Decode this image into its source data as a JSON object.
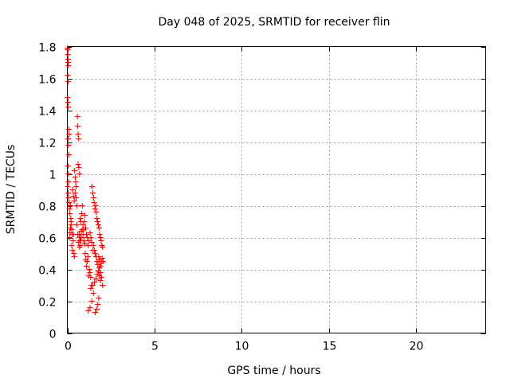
{
  "chart_data": {
    "type": "scatter",
    "title": "Day 048 of 2025, SRMTID for receiver flin",
    "xlabel": "GPS time / hours",
    "ylabel": "SRMTID / TECUs",
    "xlim": [
      0,
      24
    ],
    "ylim": [
      0,
      1.8
    ],
    "xticks": [
      0,
      5,
      10,
      15,
      20
    ],
    "yticks": [
      0,
      0.2,
      0.4,
      0.6,
      0.8,
      1,
      1.2,
      1.4,
      1.6,
      1.8
    ],
    "xtick_labels": [
      "0",
      "5",
      "10",
      "15",
      "20"
    ],
    "ytick_labels": [
      "0",
      "0.2",
      "0.4",
      "0.6",
      "0.8",
      "1",
      "1.2",
      "1.4",
      "1.6",
      "1.8"
    ],
    "grid": true,
    "marker": "+",
    "color": "#ff0000",
    "series": [
      {
        "name": "SRMTID",
        "x": [
          0.01,
          0.02,
          0.03,
          0.04,
          0.05,
          0.06,
          0.03,
          0.05,
          0.02,
          0.04,
          0.06,
          0.08,
          0.1,
          0.05,
          0.07,
          0.09,
          0.04,
          0.06,
          0.08,
          0.03,
          0.05,
          0.07,
          0.1,
          0.12,
          0.15,
          0.18,
          0.2,
          0.22,
          0.25,
          0.28,
          0.12,
          0.15,
          0.18,
          0.22,
          0.25,
          0.3,
          0.33,
          0.35,
          0.38,
          0.4,
          0.42,
          0.45,
          0.48,
          0.5,
          0.3,
          0.35,
          0.4,
          0.45,
          0.5,
          0.55,
          0.58,
          0.6,
          0.62,
          0.65,
          0.68,
          0.7,
          0.72,
          0.75,
          0.78,
          0.8,
          0.55,
          0.6,
          0.65,
          0.7,
          0.75,
          0.8,
          0.85,
          0.9,
          0.95,
          1.0,
          0.62,
          0.66,
          0.7,
          0.74,
          0.78,
          0.82,
          0.86,
          0.9,
          0.94,
          0.98,
          1.0,
          1.05,
          1.1,
          1.15,
          1.2,
          1.25,
          1.3,
          1.35,
          1.4,
          1.45,
          1.02,
          1.06,
          1.1,
          1.14,
          1.18,
          1.22,
          1.26,
          1.3,
          1.34,
          1.38,
          1.5,
          1.55,
          1.6,
          1.65,
          1.7,
          1.75,
          1.8,
          1.85,
          1.9,
          1.95,
          2.0,
          2.05,
          1.42,
          1.46,
          1.5,
          1.54,
          1.58,
          1.62,
          1.66,
          1.7,
          1.74,
          1.78,
          1.82,
          1.86,
          1.9,
          1.94,
          1.98,
          2.02,
          1.2,
          1.3,
          1.4,
          1.5,
          1.6,
          1.7,
          1.75,
          1.8,
          1.85,
          1.9,
          1.35,
          1.45,
          1.55,
          1.65,
          1.72,
          1.78,
          1.84,
          1.9,
          1.96,
          2.02
        ],
        "y": [
          1.79,
          1.78,
          1.75,
          1.72,
          1.7,
          1.68,
          1.62,
          1.58,
          1.48,
          1.45,
          1.42,
          1.28,
          1.25,
          1.22,
          1.18,
          1.12,
          1.05,
          1.0,
          0.95,
          0.92,
          0.88,
          0.85,
          0.82,
          0.78,
          0.75,
          0.8,
          0.72,
          0.68,
          0.65,
          0.62,
          0.6,
          0.63,
          0.66,
          0.7,
          0.55,
          0.52,
          0.58,
          0.62,
          0.5,
          0.48,
          1.02,
          0.98,
          0.95,
          0.92,
          0.9,
          0.86,
          0.83,
          0.88,
          0.85,
          0.8,
          1.36,
          1.3,
          1.25,
          1.22,
          0.62,
          0.6,
          0.58,
          0.55,
          0.6,
          0.64,
          0.68,
          0.62,
          0.57,
          0.54,
          0.58,
          0.6,
          0.65,
          0.62,
          0.58,
          0.56,
          1.06,
          1.04,
          1.0,
          0.72,
          0.7,
          0.75,
          0.8,
          0.68,
          0.65,
          0.7,
          0.74,
          0.66,
          0.62,
          0.6,
          0.55,
          0.58,
          0.63,
          0.6,
          0.57,
          0.52,
          0.5,
          0.46,
          0.42,
          0.45,
          0.48,
          0.36,
          0.4,
          0.38,
          0.35,
          0.3,
          0.55,
          0.52,
          0.5,
          0.48,
          0.45,
          0.43,
          0.48,
          0.46,
          0.42,
          0.44,
          0.47,
          0.45,
          0.92,
          0.88,
          0.85,
          0.82,
          0.78,
          0.8,
          0.76,
          0.72,
          0.7,
          0.68,
          0.66,
          0.62,
          0.6,
          0.58,
          0.55,
          0.54,
          0.14,
          0.16,
          0.2,
          0.25,
          0.13,
          0.15,
          0.18,
          0.22,
          0.36,
          0.33,
          0.28,
          0.3,
          0.32,
          0.34,
          0.37,
          0.39,
          0.41,
          0.38,
          0.35,
          0.3
        ]
      }
    ]
  }
}
